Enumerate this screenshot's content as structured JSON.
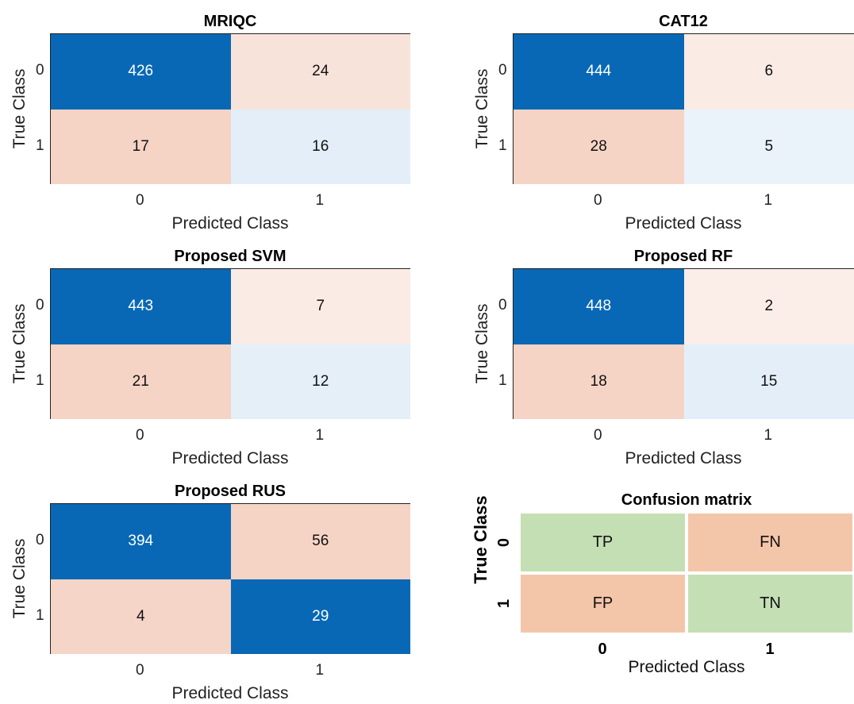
{
  "chart_data": [
    {
      "type": "heatmap",
      "title": "MRIQC",
      "xlabel": "Predicted Class",
      "ylabel": "True Class",
      "x_categories": [
        "0",
        "1"
      ],
      "y_categories": [
        "0",
        "1"
      ],
      "values": [
        [
          426,
          24
        ],
        [
          17,
          16
        ]
      ]
    },
    {
      "type": "heatmap",
      "title": "CAT12",
      "xlabel": "Predicted Class",
      "ylabel": "True Class",
      "x_categories": [
        "0",
        "1"
      ],
      "y_categories": [
        "0",
        "1"
      ],
      "values": [
        [
          444,
          6
        ],
        [
          28,
          5
        ]
      ]
    },
    {
      "type": "heatmap",
      "title": "Proposed SVM",
      "xlabel": "Predicted Class",
      "ylabel": "True Class",
      "x_categories": [
        "0",
        "1"
      ],
      "y_categories": [
        "0",
        "1"
      ],
      "values": [
        [
          443,
          7
        ],
        [
          21,
          12
        ]
      ]
    },
    {
      "type": "heatmap",
      "title": "Proposed RF",
      "xlabel": "Predicted Class",
      "ylabel": "True Class",
      "x_categories": [
        "0",
        "1"
      ],
      "y_categories": [
        "0",
        "1"
      ],
      "values": [
        [
          448,
          2
        ],
        [
          18,
          15
        ]
      ]
    },
    {
      "type": "heatmap",
      "title": "Proposed RUS",
      "xlabel": "Predicted Class",
      "ylabel": "True Class",
      "x_categories": [
        "0",
        "1"
      ],
      "y_categories": [
        "0",
        "1"
      ],
      "values": [
        [
          394,
          56
        ],
        [
          4,
          29
        ]
      ]
    },
    {
      "type": "table",
      "title": "Confusion matrix",
      "xlabel": "Predicted Class",
      "ylabel": "True Class",
      "x_categories": [
        "0",
        "1"
      ],
      "y_categories": [
        "0",
        "1"
      ],
      "cells": [
        [
          "TP",
          "FN"
        ],
        [
          "FP",
          "TN"
        ]
      ],
      "cell_colors": [
        [
          "#c5dfb4",
          "#f4c6a9"
        ],
        [
          "#f4c6a9",
          "#c5dfb4"
        ]
      ]
    }
  ],
  "colors": {
    "diag_strong": "#0868b5",
    "diag_light": "#e3eef8",
    "offdiag_light": "#fbeee9",
    "offdiag_strong": "#f5d4c6"
  }
}
